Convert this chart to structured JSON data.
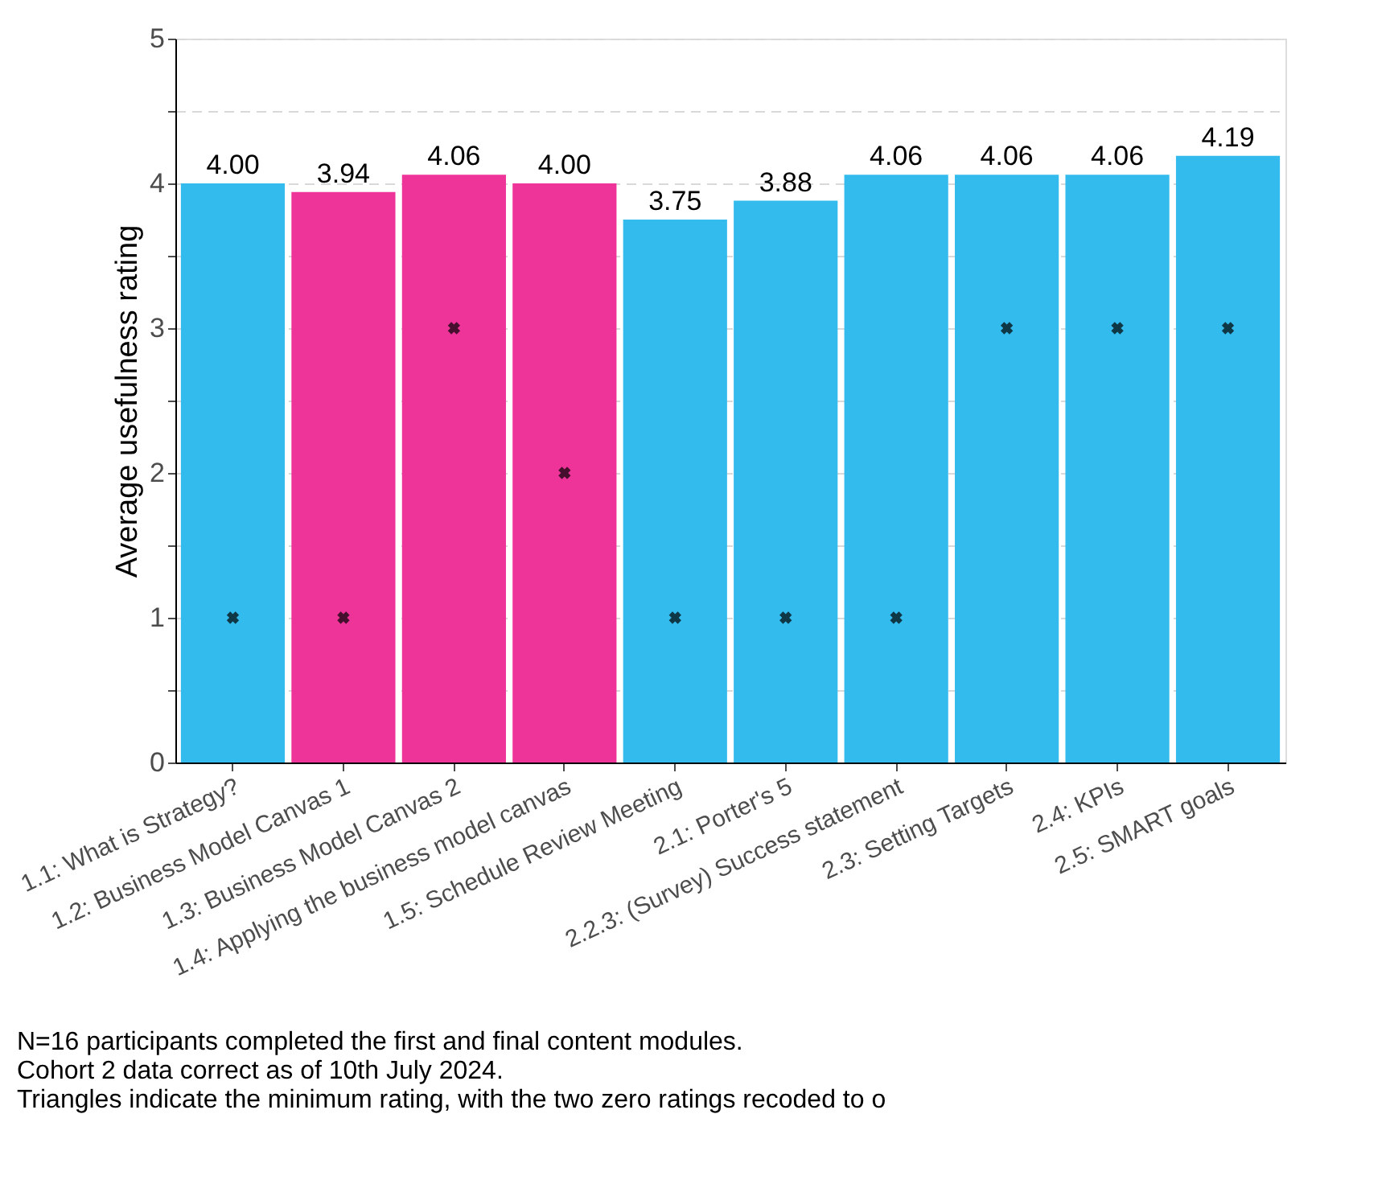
{
  "chart_data": {
    "type": "bar",
    "ylabel": "Average usefulness rating",
    "categories": [
      "1.1: What is Strategy?",
      "1.2: Business Model Canvas 1",
      "1.3: Business Model Canvas 2",
      "1.4: Applying the business model canvas",
      "1.5: Schedule Review Meeting",
      "2.1: Porter's 5",
      "2.2.3: (Survey) Success statement",
      "2.3: Setting Targets",
      "2.4: KPIs",
      "2.5: SMART goals"
    ],
    "series": [
      {
        "colors": [
          "#33bbee",
          "#ee3399",
          "#ee3399",
          "#ee3399",
          "#33bbee",
          "#33bbee",
          "#33bbee",
          "#33bbee",
          "#33bbee",
          "#33bbee"
        ],
        "values": [
          4.0,
          3.94,
          4.06,
          4.0,
          3.75,
          3.88,
          4.06,
          4.06,
          4.06,
          4.19
        ],
        "value_labels": [
          "4.00",
          "3.94",
          "4.06",
          "4.00",
          "3.75",
          "3.88",
          "4.06",
          "4.06",
          "4.06",
          "4.19"
        ]
      },
      {
        "type": "scatter",
        "color": "#000000",
        "marker": "cross",
        "values": [
          1,
          1,
          3,
          2,
          1,
          1,
          1,
          3,
          3,
          3
        ]
      }
    ],
    "ylim": [
      0,
      5
    ],
    "yticks": [
      0,
      {
        "value": 0.5,
        "label": null
      },
      1,
      {
        "value": 1.5,
        "label": null
      },
      2,
      {
        "value": 2.5,
        "label": null
      },
      3,
      {
        "value": 3.5,
        "label": null
      },
      4,
      {
        "value": 4.5,
        "label": null
      },
      5
    ],
    "grid": "y",
    "annotations": [
      "N=16 participants completed the first and final content modules.",
      "Cohort 2 data correct as of 10th July 2024.",
      "Triangles indicate the minimum rating, with the two zero ratings recoded to o"
    ]
  }
}
